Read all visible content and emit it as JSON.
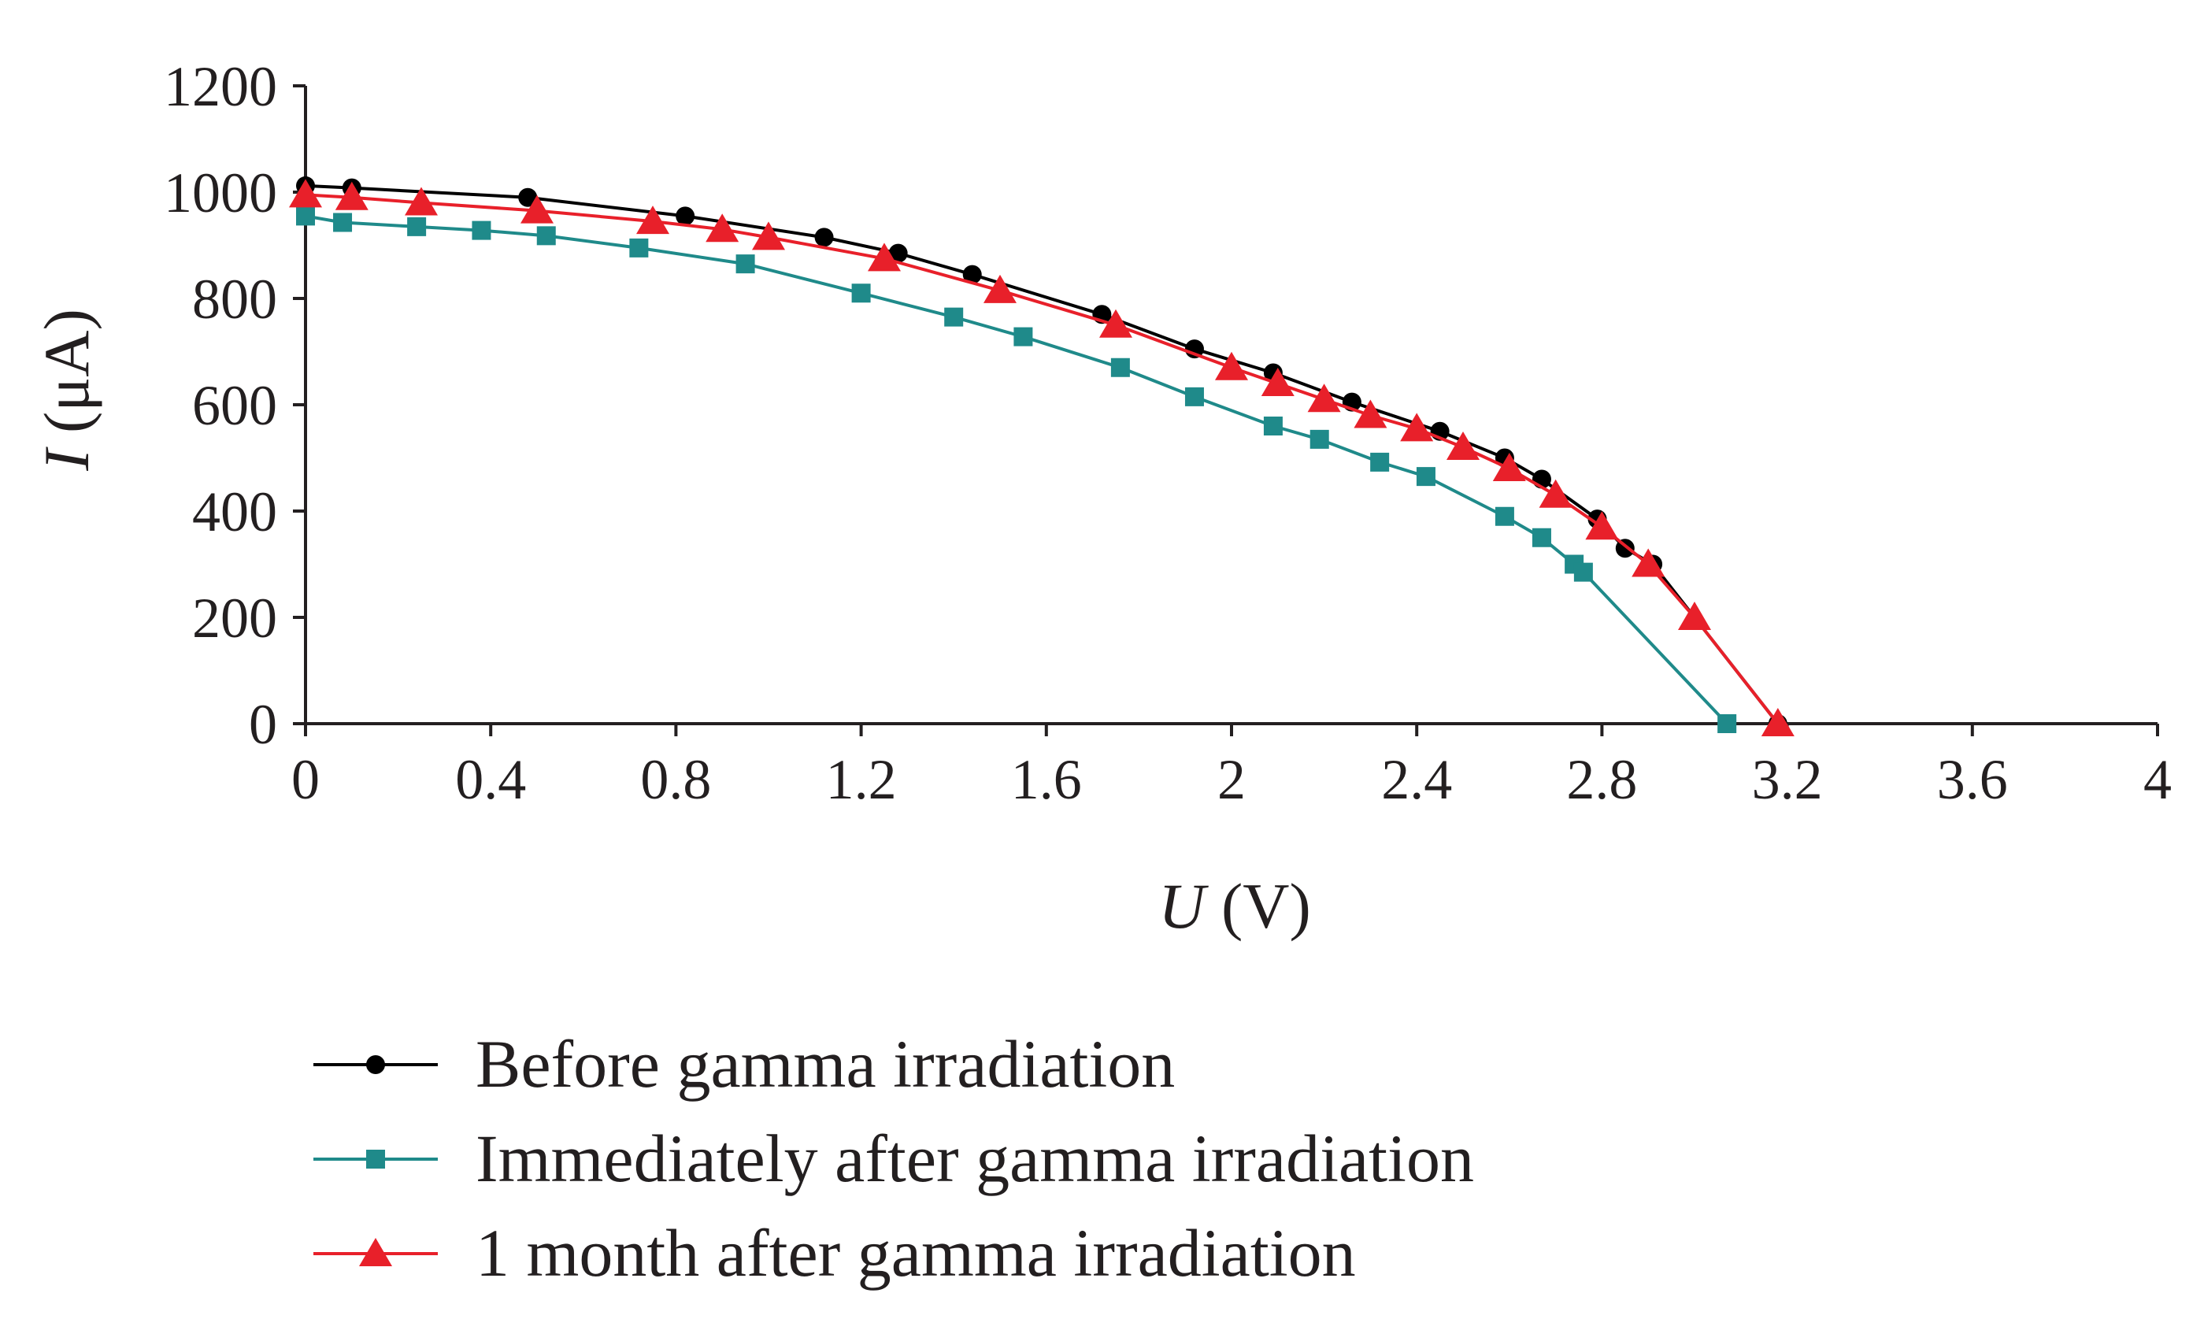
{
  "chart_data": {
    "type": "line",
    "title": "",
    "xlabel": {
      "italic": "U",
      "rest": " (V)"
    },
    "ylabel": {
      "italic": "I",
      "rest": " (μA)"
    },
    "xlim": [
      0,
      4
    ],
    "ylim": [
      0,
      1200
    ],
    "xticks": [
      "0",
      "0.4",
      "0.8",
      "1.2",
      "1.6",
      "2",
      "2.4",
      "2.8",
      "3.2",
      "3.6",
      "4"
    ],
    "yticks": [
      "0",
      "200",
      "400",
      "600",
      "800",
      "1000",
      "1200"
    ],
    "xtick_values": [
      0,
      0.4,
      0.8,
      1.2,
      1.6,
      2.0,
      2.4,
      2.8,
      3.2,
      3.6,
      4.0
    ],
    "ytick_values": [
      0,
      200,
      400,
      600,
      800,
      1000,
      1200
    ],
    "grid": false,
    "legend_position": "bottom",
    "series": [
      {
        "name": "Before gamma irradiation",
        "color": "#000000",
        "marker": "circle",
        "x": [
          0,
          0.1,
          0.48,
          0.82,
          1.12,
          1.28,
          1.44,
          1.72,
          1.92,
          2.09,
          2.26,
          2.45,
          2.59,
          2.67,
          2.79,
          2.85,
          2.91,
          3.18
        ],
        "y": [
          1012,
          1008,
          990,
          955,
          915,
          885,
          845,
          770,
          705,
          660,
          605,
          550,
          500,
          460,
          385,
          330,
          300,
          0
        ]
      },
      {
        "name": "Immediately after gamma irradiation",
        "color": "#1f8a8a",
        "marker": "square",
        "x": [
          0,
          0.08,
          0.24,
          0.38,
          0.52,
          0.72,
          0.95,
          1.2,
          1.4,
          1.55,
          1.76,
          1.92,
          2.09,
          2.19,
          2.32,
          2.42,
          2.59,
          2.67,
          2.74,
          2.76,
          3.07
        ],
        "y": [
          955,
          943,
          935,
          928,
          918,
          895,
          865,
          810,
          765,
          728,
          670,
          615,
          560,
          535,
          492,
          465,
          390,
          350,
          300,
          285,
          0
        ]
      },
      {
        "name": "1 month after gamma irradiation",
        "color": "#e8202a",
        "marker": "triangle",
        "x": [
          0,
          0.1,
          0.25,
          0.5,
          0.75,
          0.9,
          1.0,
          1.25,
          1.5,
          1.75,
          2.0,
          2.1,
          2.2,
          2.3,
          2.4,
          2.5,
          2.6,
          2.7,
          2.8,
          2.9,
          3.0,
          3.18
        ],
        "y": [
          995,
          990,
          980,
          965,
          945,
          930,
          915,
          875,
          815,
          750,
          670,
          640,
          610,
          580,
          555,
          520,
          480,
          430,
          370,
          300,
          200,
          0
        ]
      }
    ]
  }
}
